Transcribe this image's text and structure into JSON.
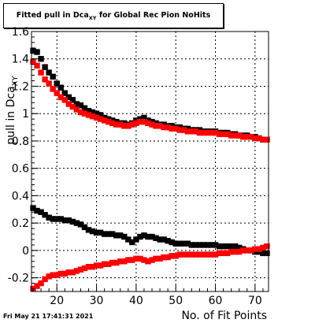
{
  "title": {
    "prefix": "Fitted pull in Dca",
    "subscript": "XY",
    "suffix": " for Global Rec Pion NoHits"
  },
  "timestamp": "Fri May 21 17:41:31 2021",
  "colors": {
    "series_black": "#000000",
    "series_red": "#ff0000"
  },
  "chart_data": {
    "type": "scatter",
    "title": "Fitted pull in Dca_XY for Global Rec Pion NoHits",
    "xlabel": "No. of Fit Points",
    "ylabel": "pull in Dca",
    "ylabel_subscript": "XY",
    "xlim": [
      13.6,
      73.4
    ],
    "ylim": [
      -0.3,
      1.6
    ],
    "x_ticks": [
      "20",
      "30",
      "40",
      "50",
      "60",
      "70"
    ],
    "y_ticks": [
      "-0.2",
      "0",
      "0.2",
      "0.4",
      "0.6",
      "0.8",
      "1",
      "1.2",
      "1.4",
      "1.6"
    ],
    "grid": true,
    "x": [
      14,
      15,
      16,
      17,
      18,
      19,
      20,
      21,
      22,
      23,
      24,
      25,
      26,
      27,
      28,
      29,
      30,
      31,
      32,
      33,
      34,
      35,
      36,
      37,
      38,
      39,
      40,
      41,
      42,
      43,
      44,
      45,
      46,
      47,
      48,
      49,
      50,
      51,
      52,
      53,
      54,
      55,
      56,
      57,
      58,
      59,
      60,
      61,
      62,
      63,
      64,
      65,
      66,
      67,
      68,
      69,
      70,
      71,
      72,
      73
    ],
    "series": [
      {
        "color": "#000000",
        "values": [
          1.46,
          1.45,
          1.4,
          1.34,
          1.3,
          1.27,
          1.22,
          1.19,
          1.15,
          1.12,
          1.1,
          1.07,
          1.06,
          1.04,
          1.02,
          1.01,
          1.0,
          0.99,
          0.97,
          0.96,
          0.95,
          0.94,
          0.93,
          0.93,
          0.92,
          0.93,
          0.95,
          0.96,
          0.97,
          0.95,
          0.94,
          0.93,
          0.92,
          0.92,
          0.91,
          0.91,
          0.9,
          0.9,
          0.89,
          0.89,
          0.88,
          0.88,
          0.88,
          0.87,
          0.87,
          0.87,
          0.87,
          0.86,
          0.86,
          0.86,
          0.85,
          0.85,
          0.84,
          0.84,
          0.84,
          0.83,
          0.83,
          0.82,
          0.81,
          0.81
        ]
      },
      {
        "color": "#ff0000",
        "values": [
          1.38,
          1.35,
          1.3,
          1.25,
          1.22,
          1.18,
          1.15,
          1.12,
          1.1,
          1.07,
          1.05,
          1.03,
          1.01,
          1.0,
          0.99,
          0.98,
          0.97,
          0.96,
          0.95,
          0.94,
          0.93,
          0.92,
          0.92,
          0.91,
          0.91,
          0.92,
          0.93,
          0.94,
          0.94,
          0.93,
          0.92,
          0.91,
          0.91,
          0.9,
          0.9,
          0.89,
          0.89,
          0.88,
          0.88,
          0.87,
          0.87,
          0.87,
          0.86,
          0.86,
          0.86,
          0.86,
          0.86,
          0.85,
          0.85,
          0.85,
          0.84,
          0.84,
          0.84,
          0.83,
          0.83,
          0.83,
          0.82,
          0.82,
          0.81,
          0.81
        ]
      },
      {
        "color": "#000000",
        "values": [
          0.31,
          0.29,
          0.28,
          0.26,
          0.24,
          0.23,
          0.23,
          0.23,
          0.22,
          0.22,
          0.21,
          0.2,
          0.19,
          0.17,
          0.15,
          0.14,
          0.13,
          0.13,
          0.12,
          0.12,
          0.12,
          0.11,
          0.11,
          0.1,
          0.08,
          0.06,
          0.08,
          0.1,
          0.11,
          0.1,
          0.1,
          0.09,
          0.08,
          0.08,
          0.07,
          0.06,
          0.05,
          0.05,
          0.05,
          0.05,
          0.04,
          0.04,
          0.04,
          0.04,
          0.04,
          0.04,
          0.04,
          0.03,
          0.03,
          0.03,
          0.03,
          0.03,
          0.02,
          0.01,
          0.0,
          0.0,
          -0.01,
          -0.01,
          -0.02,
          -0.02
        ]
      },
      {
        "color": "#ff0000",
        "values": [
          -0.28,
          -0.26,
          -0.24,
          -0.21,
          -0.19,
          -0.18,
          -0.18,
          -0.17,
          -0.17,
          -0.16,
          -0.16,
          -0.15,
          -0.14,
          -0.13,
          -0.12,
          -0.12,
          -0.11,
          -0.11,
          -0.1,
          -0.1,
          -0.09,
          -0.09,
          -0.08,
          -0.08,
          -0.07,
          -0.07,
          -0.06,
          -0.06,
          -0.07,
          -0.08,
          -0.07,
          -0.06,
          -0.06,
          -0.05,
          -0.05,
          -0.04,
          -0.04,
          -0.03,
          -0.03,
          -0.03,
          -0.03,
          -0.03,
          -0.03,
          -0.03,
          -0.03,
          -0.03,
          -0.03,
          -0.02,
          -0.02,
          -0.02,
          -0.01,
          -0.01,
          -0.01,
          0.0,
          0.0,
          0.0,
          0.01,
          0.01,
          0.02,
          0.03
        ]
      }
    ]
  }
}
